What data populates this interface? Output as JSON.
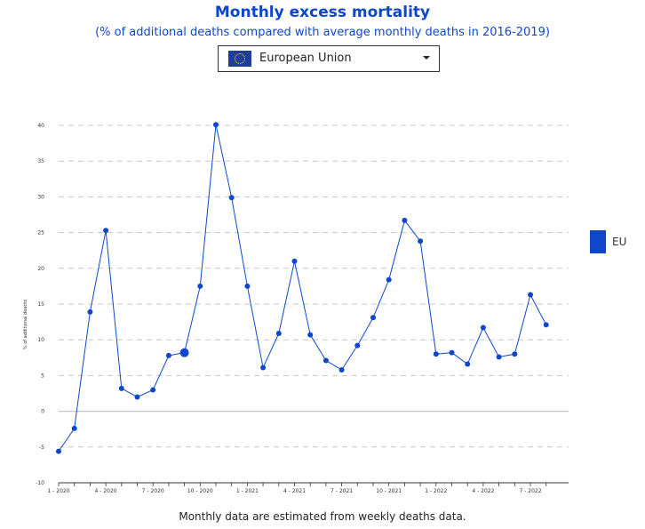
{
  "title": "Monthly excess mortality",
  "subtitle": "(% of additional deaths compared with average monthly deaths in 2016-2019)",
  "selector": {
    "selected": "European Union",
    "flag_icon": "eu-flag-icon"
  },
  "footnote": "Monthly data are estimated from weekly deaths data.",
  "legend": {
    "label": "EU",
    "color": "#0e47cb"
  },
  "chart_data": {
    "type": "line",
    "title": "Monthly excess mortality",
    "subtitle": "(% of additional deaths compared with average monthly deaths in 2016-2019)",
    "ylabel": "% of additional deaths",
    "xlabel": "",
    "ylim": [
      -10,
      40
    ],
    "yticks": [
      -10,
      -5,
      0,
      5,
      10,
      15,
      20,
      25,
      30,
      35,
      40
    ],
    "grid": "horizontal dashed",
    "legend_position": "right",
    "x": [
      "1 - 2020",
      "2 - 2020",
      "3 - 2020",
      "4 - 2020",
      "5 - 2020",
      "6 - 2020",
      "7 - 2020",
      "8 - 2020",
      "9 - 2020",
      "10 - 2020",
      "11 - 2020",
      "12 - 2020",
      "1 - 2021",
      "2 - 2021",
      "3 - 2021",
      "4 - 2021",
      "5 - 2021",
      "6 - 2021",
      "7 - 2021",
      "8 - 2021",
      "9 - 2021",
      "10 - 2021",
      "11 - 2021",
      "12 - 2021",
      "1 - 2022",
      "2 - 2022",
      "3 - 2022",
      "4 - 2022",
      "5 - 2022",
      "6 - 2022",
      "7 - 2022",
      "8 - 2022"
    ],
    "xtick_labels": [
      "1 - 2020",
      "4 - 2020",
      "7 - 2020",
      "10 - 2020",
      "1 - 2021",
      "4 - 2021",
      "7 - 2021",
      "10 - 2021",
      "1 - 2022",
      "4 - 2022",
      "7 - 2022"
    ],
    "highlighted_point": "9 - 2020",
    "series": [
      {
        "name": "EU",
        "color": "#0e47cb",
        "values": [
          -5.6,
          -2.4,
          13.9,
          25.3,
          3.2,
          2.0,
          3.0,
          7.8,
          8.2,
          17.5,
          40.1,
          29.9,
          17.5,
          6.1,
          10.9,
          21.0,
          10.7,
          7.1,
          5.8,
          9.2,
          13.1,
          18.4,
          26.7,
          23.8,
          8.0,
          8.2,
          6.6,
          11.7,
          7.6,
          8.0,
          16.3,
          12.1
        ]
      }
    ]
  }
}
